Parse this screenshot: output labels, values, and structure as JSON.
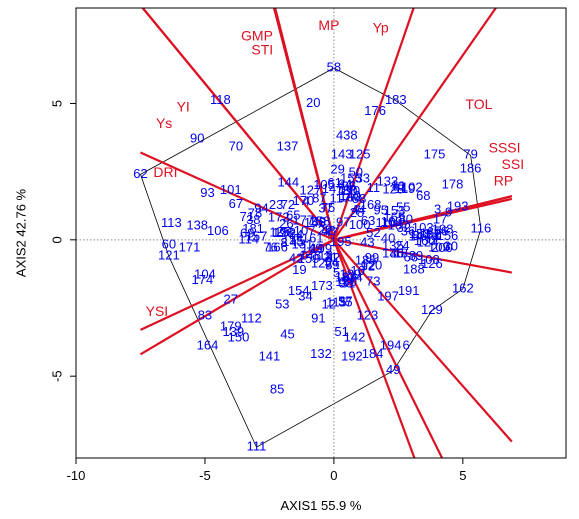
{
  "chart_data": {
    "type": "scatter",
    "xlabel": "AXIS1 55.9 %",
    "ylabel": "AXIS2 42.76 %",
    "xlim": [
      -10,
      9
    ],
    "ylim": [
      -8,
      8.5
    ],
    "xticks": [
      -10,
      -5,
      0,
      5
    ],
    "yticks": [
      -5,
      0,
      5
    ],
    "colors": {
      "points": "#0000ee",
      "vectors": "#dd1122",
      "hull": "#000000",
      "refline": "#888888"
    },
    "points": [
      {
        "label": "58",
        "x": 0,
        "y": 6.3
      },
      {
        "label": "118",
        "x": -4.4,
        "y": 5.1
      },
      {
        "label": "183",
        "x": 2.4,
        "y": 5.1
      },
      {
        "label": "20",
        "x": -0.8,
        "y": 5.0
      },
      {
        "label": "176",
        "x": 1.6,
        "y": 4.7
      },
      {
        "label": "90",
        "x": -5.3,
        "y": 3.7
      },
      {
        "label": "70",
        "x": -3.8,
        "y": 3.4
      },
      {
        "label": "137",
        "x": -1.8,
        "y": 3.4
      },
      {
        "label": "438",
        "x": 0.5,
        "y": 3.8
      },
      {
        "label": "143",
        "x": 0.3,
        "y": 3.1
      },
      {
        "label": "125",
        "x": 1.0,
        "y": 3.1
      },
      {
        "label": "175",
        "x": 3.9,
        "y": 3.1
      },
      {
        "label": "79",
        "x": 5.3,
        "y": 3.1
      },
      {
        "label": "62",
        "x": -7.5,
        "y": 2.4
      },
      {
        "label": "93",
        "x": -4.9,
        "y": 1.7
      },
      {
        "label": "101",
        "x": -4.0,
        "y": 1.8
      },
      {
        "label": "178",
        "x": 4.6,
        "y": 2.0
      },
      {
        "label": "186",
        "x": 5.3,
        "y": 2.6
      },
      {
        "label": "193",
        "x": 4.8,
        "y": 1.2
      },
      {
        "label": "67",
        "x": -3.8,
        "y": 1.3
      },
      {
        "label": "113",
        "x": -6.3,
        "y": 0.6
      },
      {
        "label": "138",
        "x": -5.3,
        "y": 0.5
      },
      {
        "label": "106",
        "x": -4.5,
        "y": 0.3
      },
      {
        "label": "114",
        "x": -3.3,
        "y": 0.0
      },
      {
        "label": "116",
        "x": 5.7,
        "y": 0.4
      },
      {
        "label": "171",
        "x": -5.6,
        "y": -0.3
      },
      {
        "label": "60",
        "x": -6.4,
        "y": -0.2
      },
      {
        "label": "121",
        "x": -6.4,
        "y": -0.6
      },
      {
        "label": "188",
        "x": 3.1,
        "y": -1.1
      },
      {
        "label": "126",
        "x": 3.8,
        "y": -0.9
      },
      {
        "label": "104",
        "x": -5.0,
        "y": -1.3
      },
      {
        "label": "174",
        "x": -5.1,
        "y": -1.5
      },
      {
        "label": "162",
        "x": 5.0,
        "y": -1.8
      },
      {
        "label": "191",
        "x": 2.9,
        "y": -1.9
      },
      {
        "label": "197",
        "x": 2.1,
        "y": -2.1
      },
      {
        "label": "27",
        "x": -4.0,
        "y": -2.2
      },
      {
        "label": "53",
        "x": -2.0,
        "y": -2.4
      },
      {
        "label": "34",
        "x": -1.1,
        "y": -2.1
      },
      {
        "label": "12",
        "x": -0.2,
        "y": -2.4
      },
      {
        "label": "83",
        "x": -5.0,
        "y": -2.8
      },
      {
        "label": "129",
        "x": 3.8,
        "y": -2.6
      },
      {
        "label": "123",
        "x": 1.3,
        "y": -2.8
      },
      {
        "label": "91",
        "x": -0.6,
        "y": -2.9
      },
      {
        "label": "112",
        "x": -3.2,
        "y": -2.9
      },
      {
        "label": "179",
        "x": -4.0,
        "y": -3.2
      },
      {
        "label": "139",
        "x": -3.9,
        "y": -3.4
      },
      {
        "label": "150",
        "x": -3.7,
        "y": -3.6
      },
      {
        "label": "45",
        "x": -1.8,
        "y": -3.5
      },
      {
        "label": "51",
        "x": 0.3,
        "y": -3.4
      },
      {
        "label": "142",
        "x": 0.8,
        "y": -3.6
      },
      {
        "label": "164",
        "x": -4.9,
        "y": -3.9
      },
      {
        "label": "194",
        "x": 2.2,
        "y": -3.9
      },
      {
        "label": "6",
        "x": 2.8,
        "y": -3.9
      },
      {
        "label": "141",
        "x": -2.5,
        "y": -4.3
      },
      {
        "label": "132",
        "x": -0.5,
        "y": -4.2
      },
      {
        "label": "192",
        "x": 0.7,
        "y": -4.3
      },
      {
        "label": "184",
        "x": 1.5,
        "y": -4.2
      },
      {
        "label": "49",
        "x": 2.3,
        "y": -4.8
      },
      {
        "label": "85",
        "x": -2.2,
        "y": -5.5
      },
      {
        "label": "111",
        "x": -3.0,
        "y": -7.6
      }
    ],
    "cluster_labels": [
      "1",
      "2",
      "3",
      "4",
      "5",
      "7",
      "8",
      "9",
      "10",
      "11",
      "13",
      "14",
      "15",
      "16",
      "17",
      "18",
      "19",
      "21",
      "22",
      "23",
      "24",
      "25",
      "26",
      "28",
      "29",
      "30",
      "31",
      "32",
      "33",
      "35",
      "36",
      "37",
      "38",
      "39",
      "40",
      "41",
      "42",
      "43",
      "44",
      "46",
      "47",
      "48",
      "50",
      "52",
      "54",
      "55",
      "56",
      "57",
      "59",
      "61",
      "63",
      "64",
      "65",
      "66",
      "68",
      "69",
      "71",
      "72",
      "73",
      "74",
      "75",
      "76",
      "77",
      "78",
      "80",
      "81",
      "82",
      "84",
      "86",
      "87",
      "88",
      "89",
      "92",
      "94",
      "95",
      "96",
      "97",
      "98",
      "99",
      "100",
      "102",
      "103",
      "105",
      "107",
      "108",
      "109",
      "110",
      "115",
      "117",
      "119",
      "120",
      "122",
      "124",
      "127",
      "128",
      "130",
      "131",
      "133",
      "134",
      "135",
      "136",
      "140",
      "144",
      "145",
      "146",
      "147",
      "148",
      "149",
      "151",
      "152",
      "153",
      "154",
      "155",
      "156",
      "157",
      "158",
      "159",
      "160",
      "161",
      "163",
      "165",
      "166",
      "167",
      "168",
      "169",
      "170",
      "172",
      "173",
      "177",
      "180",
      "181",
      "182",
      "185",
      "187",
      "189",
      "190",
      "195",
      "196",
      "198",
      "199",
      "200"
    ],
    "vectors": [
      {
        "label": "MP",
        "x": -7.5,
        "y": 28.0
      },
      {
        "label": "GMP",
        "x": -2.4,
        "y": 8.8
      },
      {
        "label": "STI",
        "x": -2.4,
        "y": 8.8
      },
      {
        "label": "Yp",
        "x": 3.2,
        "y": 8.8
      },
      {
        "label": "TOL",
        "x": 6.5,
        "y": 8.8
      },
      {
        "label": "YI",
        "x": -7.5,
        "y": 8.6
      },
      {
        "label": "Ys",
        "x": -7.5,
        "y": 8.6
      },
      {
        "label": "DRI",
        "x": -7.5,
        "y": 3.2
      },
      {
        "label": "SSSI",
        "x": 6.9,
        "y": 1.6
      },
      {
        "label": "SSI",
        "x": 6.9,
        "y": 1.6
      },
      {
        "label": "RP",
        "x": 6.9,
        "y": 1.5
      },
      {
        "label": "YSI",
        "x": -7.5,
        "y": -3.3
      }
    ],
    "extra_vectors": [
      {
        "x": -7.5,
        "y": -4.2
      },
      {
        "x": 6.9,
        "y": -1.2
      },
      {
        "x": 6.9,
        "y": -7.4
      },
      {
        "x": 4.3,
        "y": -8.2
      },
      {
        "x": 3.2,
        "y": -8.2
      }
    ],
    "hull": [
      [
        -7.5,
        2.4
      ],
      [
        0,
        6.3
      ],
      [
        2.4,
        5.1
      ],
      [
        5.3,
        3.1
      ],
      [
        5.7,
        0.4
      ],
      [
        5.0,
        -1.8
      ],
      [
        3.8,
        -2.6
      ],
      [
        2.3,
        -4.8
      ],
      [
        -3.0,
        -7.6
      ],
      [
        -6.4,
        -0.6
      ]
    ]
  }
}
